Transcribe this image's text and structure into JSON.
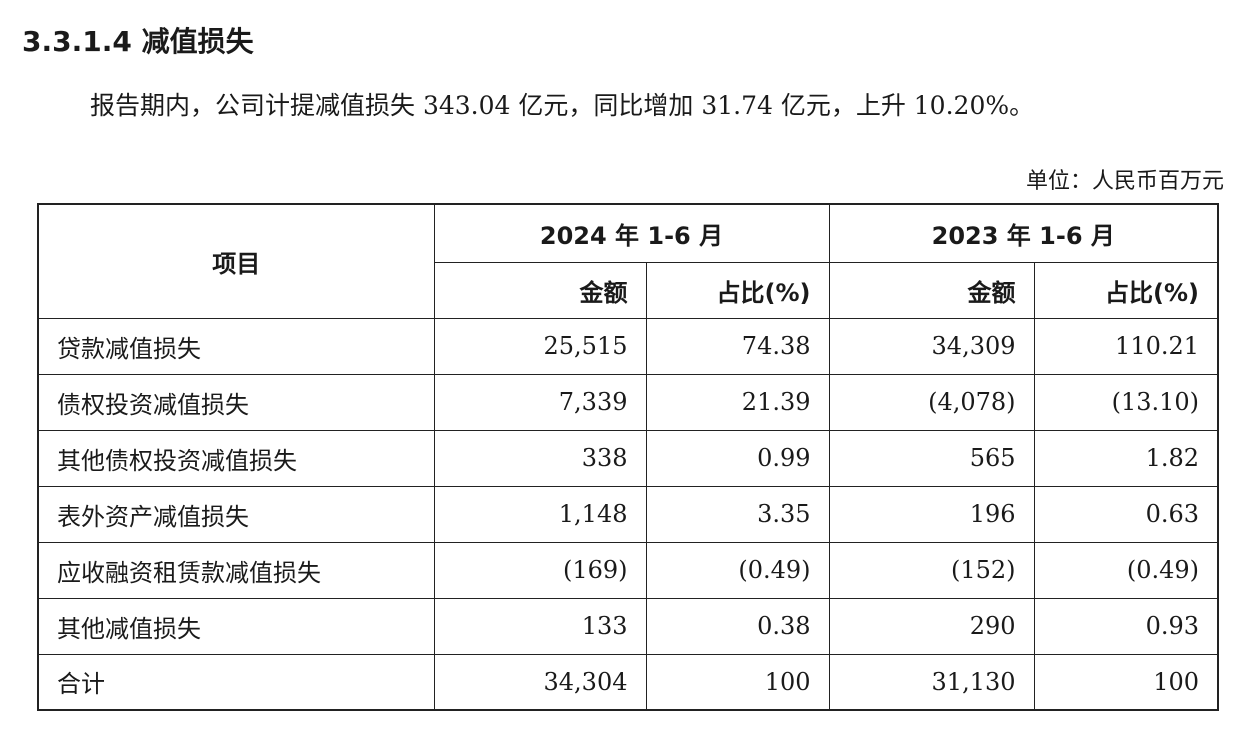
{
  "heading": "3.3.1.4 减值损失",
  "paragraph": "报告期内，公司计提减值损失 343.04 亿元，同比增加 31.74 亿元，上升 10.20%。",
  "unit": "单位：人民币百万元",
  "table": {
    "item_header": "项目",
    "periods": [
      "2024 年 1-6 月",
      "2023 年 1-6 月"
    ],
    "sub_headers": [
      "金额",
      "占比(%)",
      "金额",
      "占比(%)"
    ],
    "rows": [
      {
        "name": "贷款减值损失",
        "values": [
          "25,515",
          "74.38",
          "34,309",
          "110.21"
        ]
      },
      {
        "name": "债权投资减值损失",
        "values": [
          "7,339",
          "21.39",
          "(4,078)",
          "(13.10)"
        ]
      },
      {
        "name": "其他债权投资减值损失",
        "values": [
          "338",
          "0.99",
          "565",
          "1.82"
        ]
      },
      {
        "name": "表外资产减值损失",
        "values": [
          "1,148",
          "3.35",
          "196",
          "0.63"
        ]
      },
      {
        "name": "应收融资租赁款减值损失",
        "values": [
          "(169)",
          "(0.49)",
          "(152)",
          "(0.49)"
        ]
      },
      {
        "name": "其他减值损失",
        "values": [
          "133",
          "0.38",
          "290",
          "0.93"
        ]
      },
      {
        "name": "合计",
        "values": [
          "34,304",
          "100",
          "31,130",
          "100"
        ]
      }
    ]
  }
}
